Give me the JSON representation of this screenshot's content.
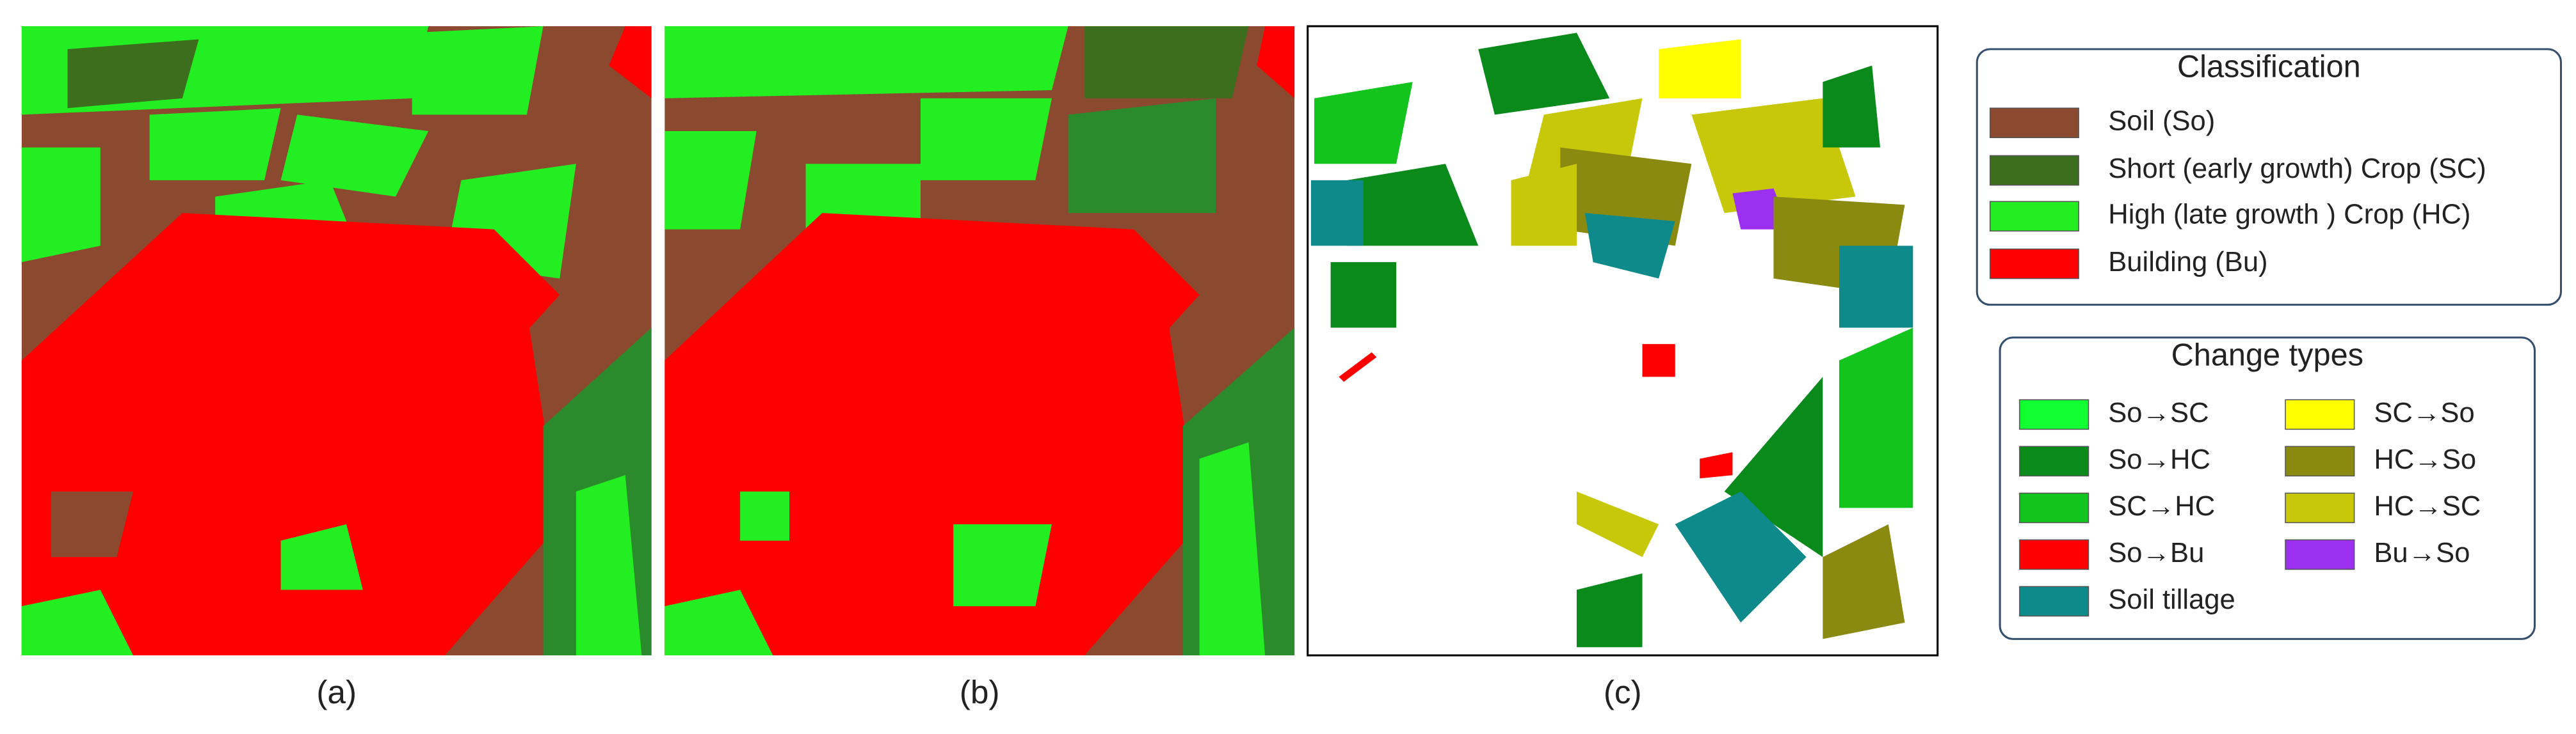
{
  "panels": [
    {
      "label": "(a)"
    },
    {
      "label": "(b)"
    },
    {
      "label": "(c)"
    }
  ],
  "classification": {
    "title": "Classification",
    "items": [
      {
        "label": "Soil (So)",
        "color": "#8b4a2f"
      },
      {
        "label": "Short (early growth) Crop (SC)",
        "color": "#3c6e1e"
      },
      {
        "label": "High (late growth ) Crop (HC)",
        "color": "#22ee22"
      },
      {
        "label": "Building (Bu)",
        "color": "#ff0000"
      }
    ]
  },
  "change_types": {
    "title": "Change types",
    "items": [
      {
        "label": "So→SC",
        "color": "#11ff33"
      },
      {
        "label": "So→HC",
        "color": "#0a8a1a"
      },
      {
        "label": "SC→HC",
        "color": "#14c41e"
      },
      {
        "label": "So→Bu",
        "color": "#ff0000"
      },
      {
        "label": "Soil tillage",
        "color": "#0e8a8a"
      },
      {
        "label": "SC→So",
        "color": "#ffff00"
      },
      {
        "label": "HC→So",
        "color": "#8a8a10"
      },
      {
        "label": "HC→SC",
        "color": "#c8c80a"
      },
      {
        "label": "Bu→So",
        "color": "#9b30f0"
      }
    ]
  }
}
